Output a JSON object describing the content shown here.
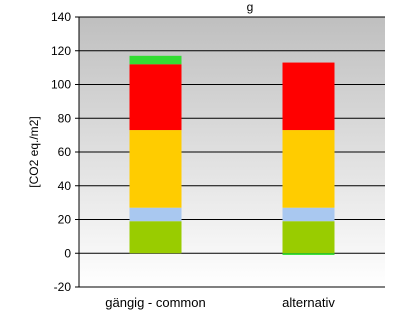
{
  "chart_data": {
    "type": "bar",
    "stacked": true,
    "title_fragment": "g",
    "ylabel": "[CO2 eq./m2]",
    "xlabel": "",
    "ylim": [
      -20,
      140
    ],
    "yticks": [
      -20,
      0,
      20,
      40,
      60,
      80,
      100,
      120,
      140
    ],
    "grid": true,
    "legend": "none",
    "background_gradient": [
      "#bfbfbf",
      "#ffffff"
    ],
    "categories": [
      "gängig - common",
      "alternativ"
    ],
    "series": [
      {
        "color": "#99cc00",
        "values": [
          19,
          19
        ]
      },
      {
        "color": "#a9c8f0",
        "values": [
          8,
          8
        ]
      },
      {
        "color": "#ffcc00",
        "values": [
          46,
          46
        ]
      },
      {
        "color": "#ff0000",
        "values": [
          39,
          40
        ]
      },
      {
        "color": "#33dd33",
        "values": [
          5,
          -1
        ]
      }
    ]
  }
}
